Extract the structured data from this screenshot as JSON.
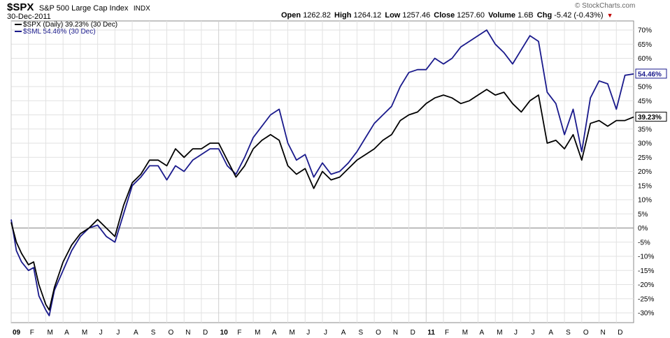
{
  "header": {
    "symbol": "$SPX",
    "full_name": "S&P 500 Large Cap Index",
    "exchange": "INDX",
    "date": "30-Dec-2011",
    "open_label": "Open",
    "open_value": "1262.82",
    "high_label": "High",
    "high_value": "1264.12",
    "low_label": "Low",
    "low_value": "1257.46",
    "close_label": "Close",
    "close_value": "1257.60",
    "volume_label": "Volume",
    "volume_value": "1.6B",
    "chg_label": "Chg",
    "chg_value": "-5.42 (-0.43%)",
    "chg_arrow": "▼",
    "credit": "© StockCharts.com"
  },
  "colors": {
    "spx": "#000000",
    "sml": "#1a1a8c",
    "zero_line": "#999999",
    "grid": "#e2e2e2",
    "down": "#c00000"
  },
  "chart_data": {
    "type": "line",
    "title": "$SPX S&P 500 Large Cap Index INDX",
    "y_unit": "%",
    "ylim": [
      -32,
      72
    ],
    "grid": true,
    "legend_position": "top-left",
    "y_ticks": [
      "70%",
      "65%",
      "60%",
      "55%",
      "50%",
      "45%",
      "40%",
      "35%",
      "30%",
      "25%",
      "20%",
      "15%",
      "10%",
      "5%",
      "0%",
      "-5%",
      "-10%",
      "-15%",
      "-20%",
      "-25%",
      "-30%"
    ],
    "x_ticks": [
      "09",
      "F",
      "M",
      "A",
      "M",
      "J",
      "J",
      "A",
      "S",
      "O",
      "N",
      "D",
      "10",
      "F",
      "M",
      "A",
      "M",
      "J",
      "J",
      "A",
      "S",
      "O",
      "N",
      "D",
      "11",
      "F",
      "M",
      "A",
      "M",
      "J",
      "J",
      "A",
      "S",
      "O",
      "N",
      "D"
    ],
    "x_unit": "month index from Jan 2009",
    "series": [
      {
        "name": "$SPX (Daily) 39.23% (30 Dec)",
        "end_label": "39.23%",
        "points": [
          [
            0,
            2
          ],
          [
            0.3,
            -5
          ],
          [
            0.6,
            -9
          ],
          [
            1,
            -13
          ],
          [
            1.3,
            -12
          ],
          [
            1.6,
            -20
          ],
          [
            2,
            -27
          ],
          [
            2.2,
            -29
          ],
          [
            2.5,
            -21
          ],
          [
            3,
            -12
          ],
          [
            3.5,
            -6
          ],
          [
            4,
            -2
          ],
          [
            4.5,
            0
          ],
          [
            5,
            3
          ],
          [
            5.5,
            0
          ],
          [
            6,
            -3
          ],
          [
            6.5,
            8
          ],
          [
            7,
            16
          ],
          [
            7.5,
            19
          ],
          [
            8,
            24
          ],
          [
            8.5,
            24
          ],
          [
            9,
            22
          ],
          [
            9.5,
            28
          ],
          [
            10,
            25
          ],
          [
            10.5,
            28
          ],
          [
            11,
            28
          ],
          [
            11.5,
            30
          ],
          [
            12,
            30
          ],
          [
            12.5,
            24
          ],
          [
            13,
            18
          ],
          [
            13.5,
            22
          ],
          [
            14,
            28
          ],
          [
            14.5,
            31
          ],
          [
            15,
            33
          ],
          [
            15.5,
            31
          ],
          [
            16,
            22
          ],
          [
            16.5,
            19
          ],
          [
            17,
            21
          ],
          [
            17.5,
            14
          ],
          [
            18,
            20
          ],
          [
            18.5,
            17
          ],
          [
            19,
            18
          ],
          [
            19.5,
            21
          ],
          [
            20,
            24
          ],
          [
            20.5,
            26
          ],
          [
            21,
            28
          ],
          [
            21.5,
            31
          ],
          [
            22,
            33
          ],
          [
            22.5,
            38
          ],
          [
            23,
            40
          ],
          [
            23.5,
            41
          ],
          [
            24,
            44
          ],
          [
            24.5,
            46
          ],
          [
            25,
            47
          ],
          [
            25.5,
            46
          ],
          [
            26,
            44
          ],
          [
            26.5,
            45
          ],
          [
            27,
            47
          ],
          [
            27.5,
            49
          ],
          [
            28,
            47
          ],
          [
            28.5,
            48
          ],
          [
            29,
            44
          ],
          [
            29.5,
            41
          ],
          [
            30,
            45
          ],
          [
            30.5,
            47
          ],
          [
            31,
            30
          ],
          [
            31.5,
            31
          ],
          [
            32,
            28
          ],
          [
            32.5,
            33
          ],
          [
            33,
            24
          ],
          [
            33.5,
            37
          ],
          [
            34,
            38
          ],
          [
            34.5,
            36
          ],
          [
            35,
            38
          ],
          [
            35.5,
            38
          ],
          [
            36,
            39.23
          ]
        ]
      },
      {
        "name": "$SML 54.46% (30 Dec)",
        "end_label": "54.46%",
        "points": [
          [
            0,
            3
          ],
          [
            0.3,
            -8
          ],
          [
            0.6,
            -12
          ],
          [
            1,
            -15
          ],
          [
            1.3,
            -14
          ],
          [
            1.6,
            -24
          ],
          [
            2,
            -29
          ],
          [
            2.2,
            -31
          ],
          [
            2.5,
            -22
          ],
          [
            3,
            -15
          ],
          [
            3.5,
            -8
          ],
          [
            4,
            -3
          ],
          [
            4.5,
            0
          ],
          [
            5,
            1
          ],
          [
            5.5,
            -3
          ],
          [
            6,
            -5
          ],
          [
            6.5,
            5
          ],
          [
            7,
            15
          ],
          [
            7.5,
            18
          ],
          [
            8,
            22
          ],
          [
            8.5,
            22
          ],
          [
            9,
            17
          ],
          [
            9.5,
            22
          ],
          [
            10,
            20
          ],
          [
            10.5,
            24
          ],
          [
            11,
            26
          ],
          [
            11.5,
            28
          ],
          [
            12,
            28
          ],
          [
            12.5,
            22
          ],
          [
            13,
            19
          ],
          [
            13.5,
            25
          ],
          [
            14,
            32
          ],
          [
            14.5,
            36
          ],
          [
            15,
            40
          ],
          [
            15.5,
            42
          ],
          [
            16,
            30
          ],
          [
            16.5,
            24
          ],
          [
            17,
            26
          ],
          [
            17.5,
            18
          ],
          [
            18,
            23
          ],
          [
            18.5,
            19
          ],
          [
            19,
            20
          ],
          [
            19.5,
            23
          ],
          [
            20,
            27
          ],
          [
            20.5,
            32
          ],
          [
            21,
            37
          ],
          [
            21.5,
            40
          ],
          [
            22,
            43
          ],
          [
            22.5,
            50
          ],
          [
            23,
            55
          ],
          [
            23.5,
            56
          ],
          [
            24,
            56
          ],
          [
            24.5,
            60
          ],
          [
            25,
            58
          ],
          [
            25.5,
            60
          ],
          [
            26,
            64
          ],
          [
            26.5,
            66
          ],
          [
            27,
            68
          ],
          [
            27.5,
            70
          ],
          [
            28,
            65
          ],
          [
            28.5,
            62
          ],
          [
            29,
            58
          ],
          [
            29.5,
            63
          ],
          [
            30,
            68
          ],
          [
            30.5,
            66
          ],
          [
            31,
            48
          ],
          [
            31.5,
            44
          ],
          [
            32,
            33
          ],
          [
            32.5,
            42
          ],
          [
            33,
            27
          ],
          [
            33.5,
            46
          ],
          [
            34,
            52
          ],
          [
            34.5,
            51
          ],
          [
            35,
            42
          ],
          [
            35.5,
            54
          ],
          [
            36,
            54.46
          ]
        ]
      }
    ]
  }
}
